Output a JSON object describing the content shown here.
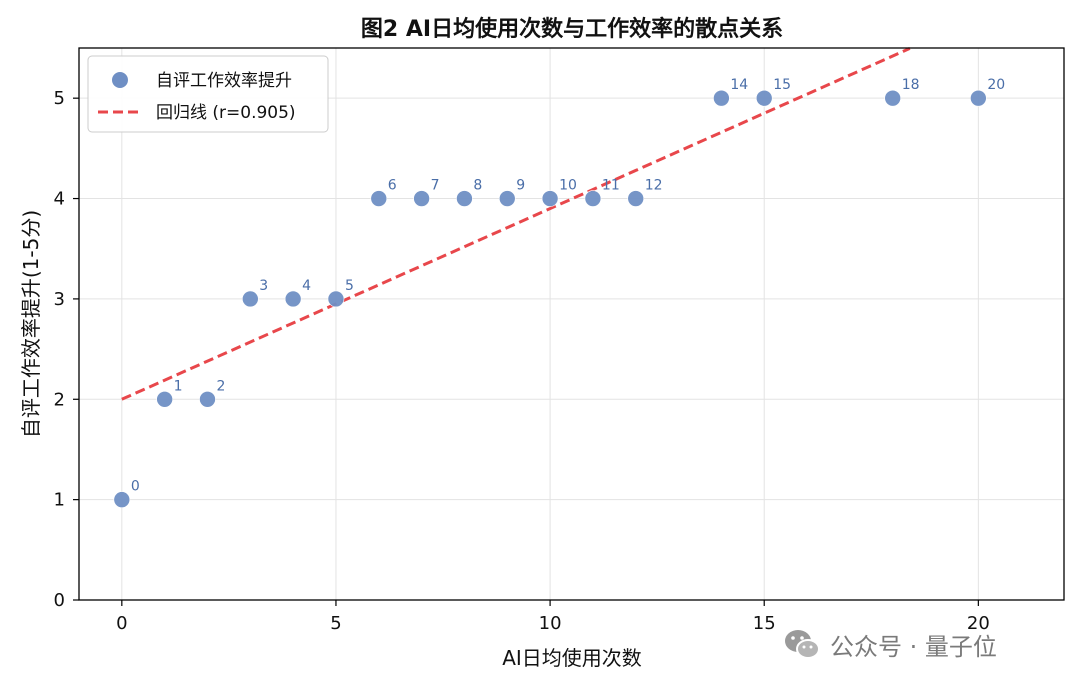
{
  "chart_data": {
    "type": "scatter",
    "title": "图2  AI日均使用次数与工作效率的散点关系",
    "xlabel": "AI日均使用次数",
    "ylabel": "自评工作效率提升(1-5分)",
    "xlim": [
      -1,
      22
    ],
    "ylim": [
      0,
      5.5
    ],
    "xticks": [
      0,
      5,
      10,
      15,
      20
    ],
    "yticks": [
      0,
      1,
      2,
      3,
      4,
      5
    ],
    "grid": true,
    "legend_position": "upper-left",
    "series": [
      {
        "name": "自评工作效率提升",
        "color": "#6f8fc4",
        "label_color": "#4a6ea8",
        "points": [
          {
            "x": 0,
            "y": 1,
            "label": "0"
          },
          {
            "x": 1,
            "y": 2,
            "label": "1"
          },
          {
            "x": 2,
            "y": 2,
            "label": "2"
          },
          {
            "x": 3,
            "y": 3,
            "label": "3"
          },
          {
            "x": 4,
            "y": 3,
            "label": "4"
          },
          {
            "x": 5,
            "y": 3,
            "label": "5"
          },
          {
            "x": 6,
            "y": 4,
            "label": "6"
          },
          {
            "x": 7,
            "y": 4,
            "label": "7"
          },
          {
            "x": 8,
            "y": 4,
            "label": "8"
          },
          {
            "x": 9,
            "y": 4,
            "label": "9"
          },
          {
            "x": 10,
            "y": 4,
            "label": "10"
          },
          {
            "x": 11,
            "y": 4,
            "label": "11"
          },
          {
            "x": 12,
            "y": 4,
            "label": "12"
          },
          {
            "x": 14,
            "y": 5,
            "label": "14"
          },
          {
            "x": 15,
            "y": 5,
            "label": "15"
          },
          {
            "x": 18,
            "y": 5,
            "label": "18"
          },
          {
            "x": 20,
            "y": 5,
            "label": "20"
          }
        ]
      }
    ],
    "regression": {
      "name": "回归线 (r=0.905)",
      "color": "#e8474b",
      "style": "dashed",
      "intercept": 2.0,
      "slope": 0.19,
      "x_range": [
        0,
        18.4
      ]
    }
  },
  "watermark": {
    "text": "公众号 · 量子位",
    "icon": "wechat-icon"
  }
}
